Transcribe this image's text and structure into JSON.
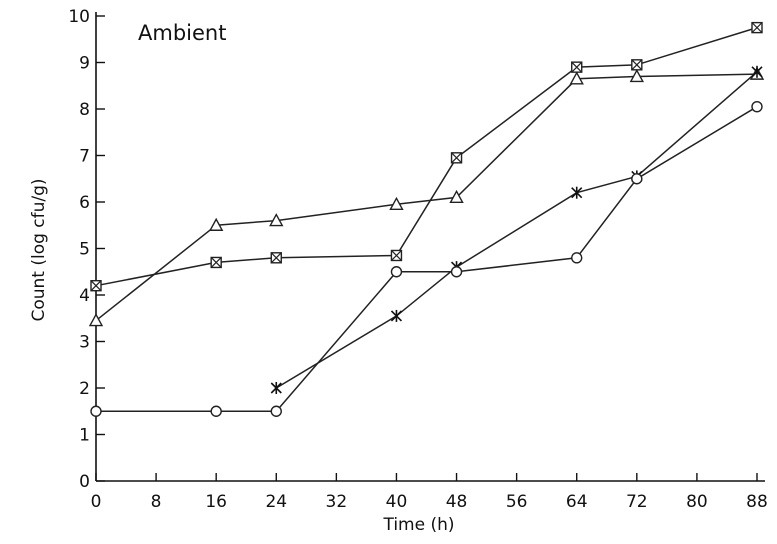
{
  "chart_data": {
    "type": "line",
    "annotation": "Ambient",
    "xlabel": "Time (h)",
    "ylabel": "Count (log cfu/g)",
    "xlim": [
      0,
      88
    ],
    "ylim": [
      0,
      10
    ],
    "x_ticks": [
      0,
      8,
      16,
      24,
      32,
      40,
      48,
      56,
      64,
      72,
      80,
      88
    ],
    "y_ticks": [
      0,
      1,
      2,
      3,
      4,
      5,
      6,
      7,
      8,
      9,
      10
    ],
    "grid": false,
    "legend": "none",
    "series": [
      {
        "marker": "square-cross",
        "points": [
          [
            0,
            4.2
          ],
          [
            16,
            4.7
          ],
          [
            24,
            4.8
          ],
          [
            40,
            4.85
          ],
          [
            48,
            6.95
          ],
          [
            64,
            8.9
          ],
          [
            72,
            8.95
          ],
          [
            88,
            9.75
          ]
        ]
      },
      {
        "marker": "triangle",
        "points": [
          [
            0,
            3.45
          ],
          [
            16,
            5.5
          ],
          [
            24,
            5.6
          ],
          [
            40,
            5.95
          ],
          [
            48,
            6.1
          ],
          [
            64,
            8.65
          ],
          [
            72,
            8.7
          ],
          [
            88,
            8.75
          ]
        ]
      },
      {
        "marker": "star",
        "points": [
          [
            24,
            2.0
          ],
          [
            40,
            3.55
          ],
          [
            48,
            4.6
          ],
          [
            64,
            6.2
          ],
          [
            72,
            6.55
          ],
          [
            88,
            8.8
          ]
        ]
      },
      {
        "marker": "circle",
        "points": [
          [
            0,
            1.5
          ],
          [
            16,
            1.5
          ],
          [
            24,
            1.5
          ],
          [
            40,
            4.5
          ],
          [
            48,
            4.5
          ],
          [
            64,
            4.8
          ],
          [
            72,
            6.5
          ],
          [
            88,
            8.05
          ]
        ]
      }
    ]
  }
}
